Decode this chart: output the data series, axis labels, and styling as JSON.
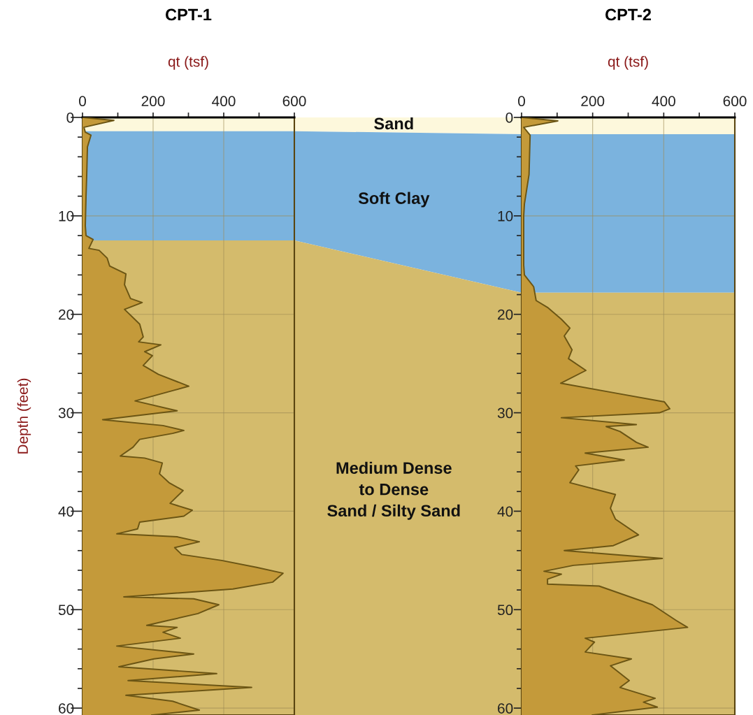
{
  "chart_data": [
    {
      "type": "area",
      "orientation": "horizontal",
      "title": "CPT-1",
      "xlabel": "qt (tsf)",
      "ylabel": "Depth (feet)",
      "xlim": [
        0,
        600
      ],
      "xticks": [
        0,
        {
          "value": 100,
          "label": null
        },
        200,
        {
          "value": 300,
          "label": null
        },
        400,
        {
          "value": 500,
          "label": null
        },
        600
      ],
      "ylim": [
        60.7,
        0
      ],
      "yticks": [
        0,
        {
          "value": 2,
          "label": null
        },
        {
          "value": 4,
          "label": null
        },
        {
          "value": 6,
          "label": null
        },
        {
          "value": 8,
          "label": null
        },
        10,
        {
          "value": 12,
          "label": null
        },
        {
          "value": 14,
          "label": null
        },
        {
          "value": 16,
          "label": null
        },
        {
          "value": 18,
          "label": null
        },
        20,
        {
          "value": 22,
          "label": null
        },
        {
          "value": 24,
          "label": null
        },
        {
          "value": 26,
          "label": null
        },
        {
          "value": 28,
          "label": null
        },
        30,
        {
          "value": 32,
          "label": null
        },
        {
          "value": 34,
          "label": null
        },
        {
          "value": 36,
          "label": null
        },
        {
          "value": 38,
          "label": null
        },
        40,
        {
          "value": 42,
          "label": null
        },
        {
          "value": 44,
          "label": null
        },
        {
          "value": 46,
          "label": null
        },
        {
          "value": 48,
          "label": null
        },
        50,
        {
          "value": 52,
          "label": null
        },
        {
          "value": 54,
          "label": null
        },
        {
          "value": 56,
          "label": null
        },
        {
          "value": 58,
          "label": null
        },
        60
      ],
      "grid": true,
      "bands": [
        {
          "axis": "y",
          "from": 0,
          "to": 1.4,
          "color": "#fdf8dc"
        },
        {
          "axis": "y",
          "from": 1.4,
          "to": 12.5,
          "color": "#7bb3de"
        },
        {
          "axis": "y",
          "from": 12.5,
          "to": 60.7,
          "color": "#d4bb6c"
        }
      ],
      "annotations": [
        "Sand",
        "Soft Clay",
        "Medium Dense\nto Dense\nSand / Silty Sand"
      ],
      "series": [
        {
          "color": "#c49a3a",
          "x": [
            0,
            0.3,
            1.0,
            1.5,
            1.8,
            3,
            5.8,
            8,
            11,
            12.0,
            12.4,
            13.3,
            13.5,
            14.3,
            15.1,
            15.9,
            17.0,
            18.4,
            18.8,
            19.5,
            21.0,
            22.3,
            22.8,
            23.1,
            23.8,
            24.2,
            25.2,
            26.1,
            27.3,
            27.7,
            28.8,
            29.8,
            30.7,
            31.3,
            31.8,
            32.1,
            32.7,
            33.5,
            34.4,
            34.6,
            35.1,
            36.2,
            37.1,
            37.9,
            39.2,
            39.9,
            40.5,
            41.1,
            41.8,
            42.3,
            42.6,
            43.1,
            43.7,
            44.4,
            45.0,
            45.7,
            46.3,
            47.2,
            47.9,
            48.7,
            48.9,
            49.5,
            50.4,
            51.1,
            51.6,
            51.8,
            52.3,
            52.9,
            53.7,
            54.5,
            55.0,
            55.8,
            56.5,
            57.2,
            57.9,
            58.7,
            59.3,
            60.2,
            60.7
          ],
          "values": [
            0,
            89,
            4,
            8,
            24,
            14,
            12,
            10,
            8,
            10,
            30,
            18,
            47,
            70,
            77,
            123,
            119,
            136,
            169,
            119,
            162,
            172,
            159,
            222,
            176,
            198,
            172,
            215,
            301,
            261,
            149,
            268,
            57,
            228,
            287,
            255,
            162,
            143,
            107,
            176,
            226,
            218,
            245,
            285,
            248,
            311,
            287,
            162,
            156,
            97,
            268,
            331,
            261,
            281,
            394,
            493,
            568,
            539,
            426,
            117,
            315,
            386,
            327,
            242,
            182,
            268,
            228,
            277,
            97,
            315,
            202,
            103,
            380,
            129,
            479,
            123,
            255,
            331,
            196
          ]
        }
      ]
    },
    {
      "type": "area",
      "orientation": "horizontal",
      "title": "CPT-2",
      "xlabel": "qt (tsf)",
      "xlim": [
        0,
        600
      ],
      "xticks": [
        0,
        {
          "value": 100,
          "label": null
        },
        200,
        {
          "value": 300,
          "label": null
        },
        400,
        {
          "value": 500,
          "label": null
        },
        600
      ],
      "ylim": [
        60.7,
        0
      ],
      "yticks": [
        0,
        {
          "value": 2,
          "label": null
        },
        {
          "value": 4,
          "label": null
        },
        {
          "value": 6,
          "label": null
        },
        {
          "value": 8,
          "label": null
        },
        10,
        {
          "value": 12,
          "label": null
        },
        {
          "value": 14,
          "label": null
        },
        {
          "value": 16,
          "label": null
        },
        {
          "value": 18,
          "label": null
        },
        20,
        {
          "value": 22,
          "label": null
        },
        {
          "value": 24,
          "label": null
        },
        {
          "value": 26,
          "label": null
        },
        {
          "value": 28,
          "label": null
        },
        30,
        {
          "value": 32,
          "label": null
        },
        {
          "value": 34,
          "label": null
        },
        {
          "value": 36,
          "label": null
        },
        {
          "value": 38,
          "label": null
        },
        40,
        {
          "value": 42,
          "label": null
        },
        {
          "value": 44,
          "label": null
        },
        {
          "value": 46,
          "label": null
        },
        {
          "value": 48,
          "label": null
        },
        50,
        {
          "value": 52,
          "label": null
        },
        {
          "value": 54,
          "label": null
        },
        {
          "value": 56,
          "label": null
        },
        {
          "value": 58,
          "label": null
        },
        60
      ],
      "grid": true,
      "bands": [
        {
          "axis": "y",
          "from": 0,
          "to": 1.7,
          "color": "#fdf8dc"
        },
        {
          "axis": "y",
          "from": 1.7,
          "to": 17.8,
          "color": "#7bb3de"
        },
        {
          "axis": "y",
          "from": 17.8,
          "to": 60.7,
          "color": "#d4bb6c"
        }
      ],
      "series": [
        {
          "color": "#c49a3a",
          "x": [
            0,
            0.35,
            1.0,
            1.8,
            5.8,
            8.8,
            10,
            15,
            16.0,
            17.2,
            18.6,
            19.3,
            20.5,
            21.4,
            22.2,
            23.6,
            24.5,
            25.7,
            27.0,
            28.0,
            28.9,
            29.6,
            30.0,
            30.5,
            31.2,
            31.4,
            31.9,
            33.0,
            33.5,
            34.1,
            34.8,
            35.4,
            35.8,
            37.1,
            38.3,
            39.7,
            40.8,
            42.4,
            43.5,
            44.0,
            44.8,
            45.5,
            46.1,
            46.4,
            46.9,
            47.4,
            47.6,
            49.5,
            51.1,
            51.8,
            52.9,
            53.3,
            54.3,
            55.0,
            55.7,
            57.2,
            57.9,
            59.0,
            59.4,
            59.9,
            60.7
          ],
          "values": [
            0,
            102,
            6,
            24,
            21,
            8,
            6,
            6,
            8,
            34,
            41,
            73,
            112,
            136,
            120,
            142,
            132,
            181,
            110,
            264,
            402,
            417,
            388,
            112,
            323,
            238,
            277,
            323,
            356,
            179,
            289,
            152,
            161,
            136,
            264,
            250,
            264,
            329,
            258,
            120,
            396,
            146,
            63,
            112,
            73,
            73,
            218,
            368,
            435,
            467,
            179,
            205,
            179,
            309,
            250,
            303,
            277,
            376,
            343,
            382,
            199
          ]
        }
      ]
    }
  ]
}
